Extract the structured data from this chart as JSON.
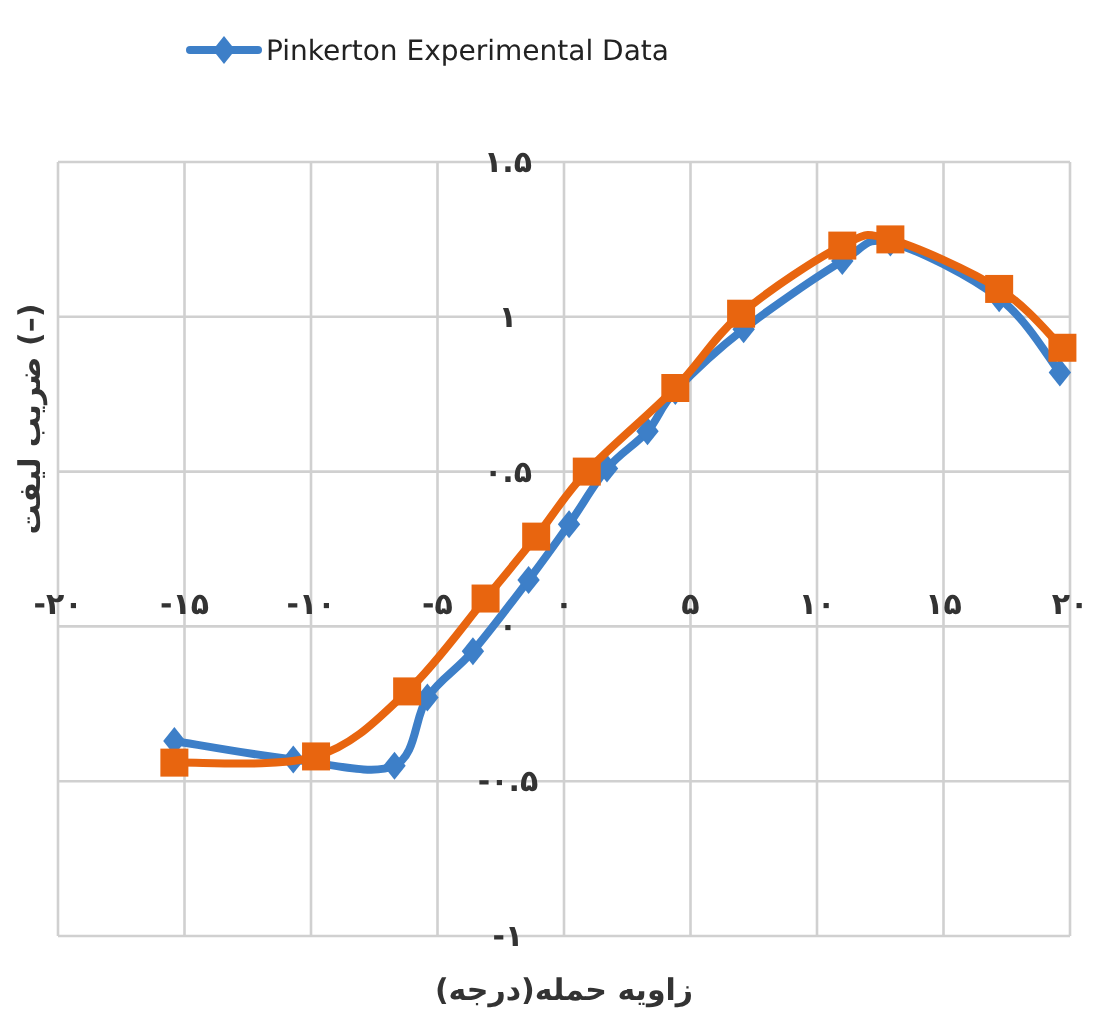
{
  "chart_data": {
    "type": "line",
    "xlabel": "زاویه حمله(درجه)",
    "ylabel": "(–) ضریب لیفت",
    "xlim": [
      -20,
      20
    ],
    "ylim": [
      -1,
      1.5
    ],
    "xticks": [
      {
        "value": -20,
        "label": "-۲۰"
      },
      {
        "value": -15,
        "label": "-۱۵"
      },
      {
        "value": -10,
        "label": "-۱۰"
      },
      {
        "value": -5,
        "label": "-۵"
      },
      {
        "value": 0,
        "label": "۰"
      },
      {
        "value": 5,
        "label": "۵"
      },
      {
        "value": 10,
        "label": "۱۰"
      },
      {
        "value": 15,
        "label": "۱۵"
      },
      {
        "value": 20,
        "label": "۲۰"
      }
    ],
    "yticks": [
      {
        "value": -1,
        "label": "-۱"
      },
      {
        "value": -0.5,
        "label": "-۰.۵"
      },
      {
        "value": 0,
        "label": "۰"
      },
      {
        "value": 0.5,
        "label": "۰.۵"
      },
      {
        "value": 1,
        "label": "۱"
      },
      {
        "value": 1.5,
        "label": "۱.۵"
      }
    ],
    "grid": true,
    "legend": "top",
    "series": [
      {
        "name": "Pinkerton Experimental Data",
        "color": "#3d7fc8",
        "marker": "diamond",
        "x": [
          -15.4,
          -10.7,
          -6.7,
          -5.4,
          -3.6,
          -1.4,
          0.2,
          1.7,
          3.3,
          4.4,
          7.1,
          11.0,
          12.9,
          17.2,
          19.6
        ],
        "values": [
          -0.37,
          -0.43,
          -0.45,
          -0.23,
          -0.08,
          0.15,
          0.33,
          0.51,
          0.63,
          0.76,
          0.96,
          1.18,
          1.24,
          1.06,
          0.82
        ]
      },
      {
        "color": "#e8650f",
        "marker": "square",
        "x": [
          -15.4,
          -9.8,
          -6.2,
          -3.1,
          -1.1,
          0.9,
          4.4,
          7.0,
          11.0,
          12.9,
          17.2,
          19.7
        ],
        "values": [
          -0.44,
          -0.42,
          -0.21,
          0.09,
          0.29,
          0.5,
          0.77,
          1.01,
          1.23,
          1.25,
          1.09,
          0.9
        ]
      }
    ]
  }
}
